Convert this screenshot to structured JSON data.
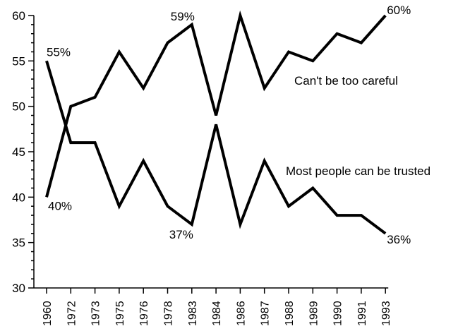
{
  "chart_data": {
    "type": "line",
    "x": [
      "1960",
      "1972",
      "1973",
      "1975",
      "1976",
      "1978",
      "1983",
      "1984",
      "1986",
      "1987",
      "1988",
      "1989",
      "1990",
      "1991",
      "1993"
    ],
    "ylim": [
      30,
      60
    ],
    "y_ticks": [
      30,
      35,
      40,
      45,
      50,
      55,
      60
    ],
    "grid": false,
    "series": [
      {
        "name": "Can't be too careful",
        "values": [
          40,
          50,
          51,
          56,
          52,
          57,
          59,
          49,
          60,
          52,
          56,
          55,
          58,
          57,
          60
        ]
      },
      {
        "name": "Most people can be trusted",
        "values": [
          55,
          46,
          46,
          39,
          44,
          39,
          37,
          48,
          37,
          44,
          39,
          41,
          38,
          38,
          36
        ]
      }
    ],
    "annotations": [
      {
        "text": "55%",
        "series": 1,
        "index": 0
      },
      {
        "text": "40%",
        "series": 0,
        "index": 0
      },
      {
        "text": "59%",
        "series": 0,
        "index": 6
      },
      {
        "text": "37%",
        "series": 1,
        "index": 6
      },
      {
        "text": "60%",
        "series": 0,
        "index": 14
      },
      {
        "text": "36%",
        "series": 1,
        "index": 14
      }
    ]
  }
}
